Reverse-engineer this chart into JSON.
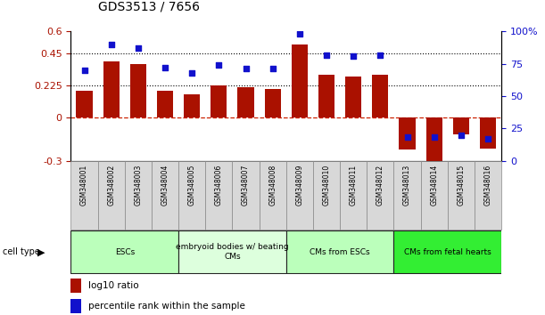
{
  "title": "GDS3513 / 7656",
  "samples": [
    "GSM348001",
    "GSM348002",
    "GSM348003",
    "GSM348004",
    "GSM348005",
    "GSM348006",
    "GSM348007",
    "GSM348008",
    "GSM348009",
    "GSM348010",
    "GSM348011",
    "GSM348012",
    "GSM348013",
    "GSM348014",
    "GSM348015",
    "GSM348016"
  ],
  "log10_ratio": [
    0.19,
    0.39,
    0.37,
    0.19,
    0.165,
    0.225,
    0.21,
    0.2,
    0.51,
    0.3,
    0.285,
    0.3,
    -0.22,
    -0.34,
    -0.115,
    -0.215
  ],
  "percentile_rank": [
    70,
    90,
    87,
    72,
    68,
    74,
    71,
    71,
    98,
    82,
    81,
    82,
    18,
    18,
    20,
    17
  ],
  "cell_type_groups": [
    {
      "label": "ESCs",
      "start": 0,
      "end": 3,
      "color": "#bbffbb"
    },
    {
      "label": "embryoid bodies w/ beating\nCMs",
      "start": 4,
      "end": 7,
      "color": "#ddffdd"
    },
    {
      "label": "CMs from ESCs",
      "start": 8,
      "end": 11,
      "color": "#bbffbb"
    },
    {
      "label": "CMs from fetal hearts",
      "start": 12,
      "end": 15,
      "color": "#33ee33"
    }
  ],
  "ylim_left": [
    -0.3,
    0.6
  ],
  "ylim_right": [
    0,
    100
  ],
  "yticks_left": [
    -0.3,
    0,
    0.225,
    0.45,
    0.6
  ],
  "ytick_labels_left": [
    "-0.3",
    "0",
    "0.225",
    "0.45",
    "0.6"
  ],
  "yticks_right": [
    0,
    25,
    50,
    75,
    100
  ],
  "ytick_labels_right": [
    "0",
    "25",
    "50",
    "75",
    "100%"
  ],
  "hlines": [
    0.225,
    0.45
  ],
  "bar_color": "#aa1100",
  "dot_color": "#1111cc",
  "zero_line_color": "#cc2200",
  "background_color": "#ffffff"
}
